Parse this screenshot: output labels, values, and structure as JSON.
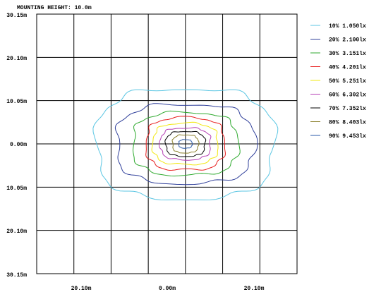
{
  "chart_data": {
    "type": "contour",
    "title": "MOUNTING HEIGHT: 10.0m",
    "y_tick_labels": [
      "30.15m",
      "20.10m",
      "10.05m",
      "0.00m",
      "10.05m",
      "20.10m",
      "30.15m"
    ],
    "x_tick_labels": [
      "20.10m",
      "0.00m",
      "20.10m"
    ],
    "y_range_m": [
      -30.15,
      30.15
    ],
    "x_range_m": [
      -40.2,
      30.15
    ],
    "grid": true,
    "legend_position": "right",
    "levels": [
      {
        "label": "10% 1.050lx",
        "color": "#5bc6e3",
        "hx": 24.0,
        "hy": 12.8
      },
      {
        "label": "20% 2.100lx",
        "color": "#2f3f9a",
        "hx": 18.6,
        "hy": 9.2
      },
      {
        "label": "30% 3.151lx",
        "color": "#2faa2f",
        "hx": 14.2,
        "hy": 7.3
      },
      {
        "label": "40% 4.201lx",
        "color": "#e81e1e",
        "hx": 10.6,
        "hy": 6.1
      },
      {
        "label": "50% 5.251lx",
        "color": "#f2e812",
        "hx": 8.8,
        "hy": 4.8
      },
      {
        "label": "60% 6.302lx",
        "color": "#b53fb5",
        "hx": 6.8,
        "hy": 3.7
      },
      {
        "label": "70% 7.352lx",
        "color": "#000000",
        "hx": 5.3,
        "hy": 2.9
      },
      {
        "label": "80% 8.403lx",
        "color": "#8a7f2a",
        "hx": 3.5,
        "hy": 2.1
      },
      {
        "label": "90% 9.453lx",
        "color": "#2a5aa8",
        "hx": 1.8,
        "hy": 1.0
      }
    ]
  }
}
